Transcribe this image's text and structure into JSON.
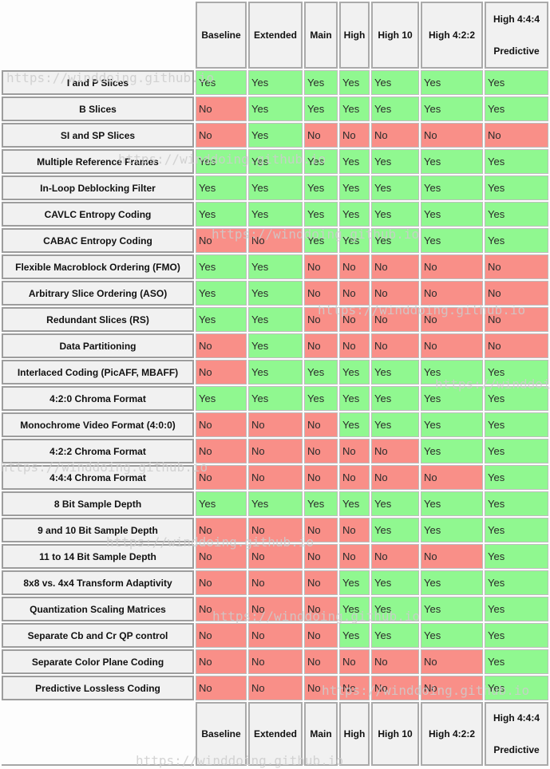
{
  "watermark": {
    "text": "https://winddoing.github.io"
  },
  "colors": {
    "yes_bg": "#90f890",
    "no_bg": "#f98f88",
    "header_bg": "#f1f1f1"
  },
  "legend": {
    "supported": "Yes",
    "not_supported": "No"
  },
  "chart_data": {
    "type": "table",
    "columns": [
      "Baseline",
      "Extended",
      "Main",
      "High",
      "High 10",
      "High 4:2:2",
      "High 4:4:4\nPredictive"
    ],
    "rows": [
      {
        "feature": "I and P Slices",
        "values": [
          "Yes",
          "Yes",
          "Yes",
          "Yes",
          "Yes",
          "Yes",
          "Yes"
        ]
      },
      {
        "feature": "B Slices",
        "values": [
          "No",
          "Yes",
          "Yes",
          "Yes",
          "Yes",
          "Yes",
          "Yes"
        ]
      },
      {
        "feature": "SI and SP Slices",
        "values": [
          "No",
          "Yes",
          "No",
          "No",
          "No",
          "No",
          "No"
        ]
      },
      {
        "feature": "Multiple Reference Frames",
        "values": [
          "Yes",
          "Yes",
          "Yes",
          "Yes",
          "Yes",
          "Yes",
          "Yes"
        ]
      },
      {
        "feature": "In-Loop Deblocking Filter",
        "values": [
          "Yes",
          "Yes",
          "Yes",
          "Yes",
          "Yes",
          "Yes",
          "Yes"
        ]
      },
      {
        "feature": "CAVLC Entropy Coding",
        "values": [
          "Yes",
          "Yes",
          "Yes",
          "Yes",
          "Yes",
          "Yes",
          "Yes"
        ]
      },
      {
        "feature": "CABAC Entropy Coding",
        "values": [
          "No",
          "No",
          "Yes",
          "Yes",
          "Yes",
          "Yes",
          "Yes"
        ]
      },
      {
        "feature": "Flexible Macroblock Ordering (FMO)",
        "values": [
          "Yes",
          "Yes",
          "No",
          "No",
          "No",
          "No",
          "No"
        ]
      },
      {
        "feature": "Arbitrary Slice Ordering (ASO)",
        "values": [
          "Yes",
          "Yes",
          "No",
          "No",
          "No",
          "No",
          "No"
        ]
      },
      {
        "feature": "Redundant Slices (RS)",
        "values": [
          "Yes",
          "Yes",
          "No",
          "No",
          "No",
          "No",
          "No"
        ]
      },
      {
        "feature": "Data Partitioning",
        "values": [
          "No",
          "Yes",
          "No",
          "No",
          "No",
          "No",
          "No"
        ]
      },
      {
        "feature": "Interlaced Coding (PicAFF, MBAFF)",
        "values": [
          "No",
          "Yes",
          "Yes",
          "Yes",
          "Yes",
          "Yes",
          "Yes"
        ]
      },
      {
        "feature": "4:2:0 Chroma Format",
        "values": [
          "Yes",
          "Yes",
          "Yes",
          "Yes",
          "Yes",
          "Yes",
          "Yes"
        ]
      },
      {
        "feature": "Monochrome Video Format (4:0:0)",
        "values": [
          "No",
          "No",
          "No",
          "Yes",
          "Yes",
          "Yes",
          "Yes"
        ]
      },
      {
        "feature": "4:2:2 Chroma Format",
        "values": [
          "No",
          "No",
          "No",
          "No",
          "No",
          "Yes",
          "Yes"
        ]
      },
      {
        "feature": "4:4:4 Chroma Format",
        "values": [
          "No",
          "No",
          "No",
          "No",
          "No",
          "No",
          "Yes"
        ]
      },
      {
        "feature": "8 Bit Sample Depth",
        "values": [
          "Yes",
          "Yes",
          "Yes",
          "Yes",
          "Yes",
          "Yes",
          "Yes"
        ]
      },
      {
        "feature": "9 and 10 Bit Sample Depth",
        "values": [
          "No",
          "No",
          "No",
          "No",
          "Yes",
          "Yes",
          "Yes"
        ]
      },
      {
        "feature": "11 to 14 Bit Sample Depth",
        "values": [
          "No",
          "No",
          "No",
          "No",
          "No",
          "No",
          "Yes"
        ]
      },
      {
        "feature": "8x8 vs. 4x4 Transform Adaptivity",
        "values": [
          "No",
          "No",
          "No",
          "Yes",
          "Yes",
          "Yes",
          "Yes"
        ]
      },
      {
        "feature": "Quantization Scaling Matrices",
        "values": [
          "No",
          "No",
          "No",
          "Yes",
          "Yes",
          "Yes",
          "Yes"
        ]
      },
      {
        "feature": "Separate Cb and Cr QP control",
        "values": [
          "No",
          "No",
          "No",
          "Yes",
          "Yes",
          "Yes",
          "Yes"
        ]
      },
      {
        "feature": "Separate Color Plane Coding",
        "values": [
          "No",
          "No",
          "No",
          "No",
          "No",
          "No",
          "Yes"
        ]
      },
      {
        "feature": "Predictive Lossless Coding",
        "values": [
          "No",
          "No",
          "No",
          "No",
          "No",
          "No",
          "Yes"
        ]
      }
    ]
  }
}
